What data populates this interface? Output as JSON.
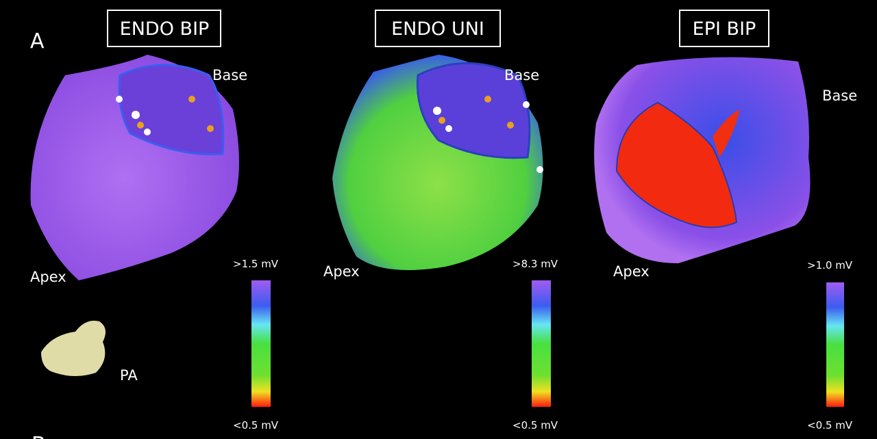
{
  "figure": {
    "panel_label": "A",
    "next_panel_label": "B",
    "orientation": "PA",
    "maps": [
      {
        "title": "ENDO BIP",
        "base": "Base",
        "apex": "Apex",
        "scale_max": ">1.5 mV",
        "scale_min": "<0.5 mV"
      },
      {
        "title": "ENDO UNI",
        "base": "Base",
        "apex": "Apex",
        "scale_max": ">8.3 mV",
        "scale_min": "<0.5 mV"
      },
      {
        "title": "EPI BIP",
        "base": "Base",
        "apex": "Apex",
        "scale_max": ">1.0 mV",
        "scale_min": "<0.5 mV"
      }
    ]
  }
}
